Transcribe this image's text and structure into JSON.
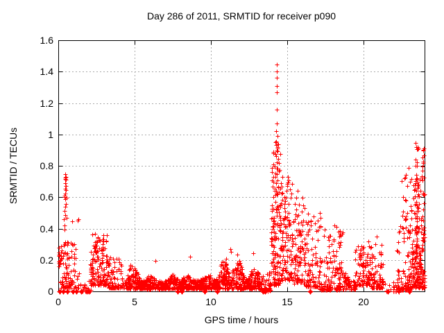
{
  "chart_data": {
    "type": "scatter",
    "title": "Day 286 of 2011, SRMTID for receiver p090",
    "xlabel": "GPS time / hours",
    "ylabel": "SRMTID / TECUs",
    "xlim": [
      0,
      24
    ],
    "ylim": [
      0,
      1.6
    ],
    "xticks": [
      {
        "v": 0,
        "label": "0"
      },
      {
        "v": 5,
        "label": "5"
      },
      {
        "v": 10,
        "label": "10"
      },
      {
        "v": 15,
        "label": "15"
      },
      {
        "v": 20,
        "label": "20"
      }
    ],
    "yticks": [
      {
        "v": 0,
        "label": "0"
      },
      {
        "v": 0.2,
        "label": "0.2"
      },
      {
        "v": 0.4,
        "label": "0.4"
      },
      {
        "v": 0.6,
        "label": "0.6"
      },
      {
        "v": 0.8,
        "label": "0.8"
      },
      {
        "v": 1,
        "label": "1"
      },
      {
        "v": 1.2,
        "label": "1.2"
      },
      {
        "v": 1.4,
        "label": "1.4"
      },
      {
        "v": 1.6,
        "label": "1.6"
      }
    ],
    "grid": true,
    "legend": null,
    "marker": {
      "shape": "plus",
      "color": "#ff0000",
      "size": 7
    },
    "grid_color": "#a8a8a8",
    "border_color": "#000000",
    "seed": 1234,
    "notable_points": [
      [
        14.32,
        1.445
      ],
      [
        14.31,
        1.4
      ],
      [
        14.33,
        1.362
      ],
      [
        14.3,
        1.31
      ],
      [
        14.33,
        1.268
      ],
      [
        14.31,
        1.158
      ],
      [
        14.34,
        1.07
      ],
      [
        14.29,
        1.02
      ],
      [
        14.36,
        0.99
      ],
      [
        0.45,
        0.487
      ],
      [
        0.44,
        0.745
      ],
      [
        0.46,
        0.715
      ],
      [
        0.45,
        0.688
      ],
      [
        0.44,
        0.655
      ],
      [
        0.46,
        0.625
      ],
      [
        0.45,
        0.59
      ],
      [
        17.15,
        0.5
      ],
      [
        17.2,
        0.47
      ],
      [
        20.85,
        0.35
      ],
      [
        11.27,
        0.27
      ],
      [
        11.3,
        0.25
      ],
      [
        8.62,
        0.22
      ],
      [
        12.75,
        0.245
      ],
      [
        6.35,
        0.195
      ],
      [
        0.05,
        0.235
      ],
      [
        0.05,
        0.225
      ],
      [
        0.1,
        0.23
      ],
      [
        23.4,
        0.945
      ],
      [
        23.45,
        0.92
      ],
      [
        23.5,
        0.905
      ],
      [
        23.9,
        0.9
      ],
      [
        23.95,
        0.865
      ]
    ],
    "zero_hours": [
      0.07,
      0.1,
      0.33,
      0.6,
      0.95,
      1.17,
      1.5,
      1.85,
      2.0,
      7.82,
      8.1,
      9.6,
      10.4,
      13.42,
      13.55,
      16.5,
      21.6,
      22.3,
      23.0
    ],
    "clusters": [
      {
        "t0": 0.02,
        "t1": 0.18,
        "n": 7,
        "y0": 0.17,
        "y1": 0.25,
        "shape": "uniform"
      },
      {
        "t0": 0.05,
        "t1": 0.9,
        "n": 80,
        "y0": 0.02,
        "y1": 0.32,
        "shape": "decay2"
      },
      {
        "t0": 0.38,
        "t1": 0.55,
        "n": 16,
        "y0": 0.28,
        "y1": 0.76,
        "shape": "uniform"
      },
      {
        "t0": 0.9,
        "t1": 1.35,
        "n": 28,
        "y0": 0.02,
        "y1": 0.46,
        "shape": "decay"
      },
      {
        "t0": 1.4,
        "t1": 2.15,
        "n": 22,
        "y0": 0.0,
        "y1": 0.09,
        "shape": "decay"
      },
      {
        "t0": 2.1,
        "t1": 3.3,
        "n": 140,
        "y0": 0.04,
        "y1": 0.37,
        "shape": "decay2"
      },
      {
        "t0": 2.4,
        "t1": 2.62,
        "n": 14,
        "y0": 0.24,
        "y1": 0.35,
        "shape": "uniform"
      },
      {
        "t0": 3.3,
        "t1": 4.35,
        "n": 85,
        "y0": 0.02,
        "y1": 0.22,
        "shape": "decay"
      },
      {
        "t0": 4.35,
        "t1": 8.3,
        "n": 430,
        "y0": 0.015,
        "y1": 0.19,
        "shape": "band"
      },
      {
        "t0": 8.3,
        "t1": 11.2,
        "n": 330,
        "y0": 0.015,
        "y1": 0.21,
        "shape": "band"
      },
      {
        "t0": 10.7,
        "t1": 11.1,
        "n": 22,
        "y0": 0.05,
        "y1": 0.27,
        "shape": "decay"
      },
      {
        "t0": 11.2,
        "t1": 13.35,
        "n": 250,
        "y0": 0.015,
        "y1": 0.24,
        "shape": "band"
      },
      {
        "t0": 13.35,
        "t1": 13.95,
        "n": 45,
        "y0": 0.0,
        "y1": 0.14,
        "shape": "decay"
      },
      {
        "t0": 13.95,
        "t1": 14.55,
        "n": 150,
        "y0": 0.04,
        "y1": 0.9,
        "shape": "decay2"
      },
      {
        "t0": 14.2,
        "t1": 14.42,
        "n": 12,
        "y0": 0.78,
        "y1": 0.96,
        "shape": "uniform"
      },
      {
        "t0": 14.55,
        "t1": 15.35,
        "n": 115,
        "y0": 0.07,
        "y1": 0.73,
        "shape": "decay2"
      },
      {
        "t0": 15.35,
        "t1": 16.2,
        "n": 100,
        "y0": 0.05,
        "y1": 0.65,
        "shape": "decay2"
      },
      {
        "t0": 16.2,
        "t1": 17.05,
        "n": 85,
        "y0": 0.03,
        "y1": 0.5,
        "shape": "decay"
      },
      {
        "t0": 17.05,
        "t1": 18.3,
        "n": 115,
        "y0": 0.01,
        "y1": 0.42,
        "shape": "decay"
      },
      {
        "t0": 18.38,
        "t1": 18.62,
        "n": 12,
        "y0": 0.28,
        "y1": 0.39,
        "shape": "uniform"
      },
      {
        "t0": 18.3,
        "t1": 19.45,
        "n": 90,
        "y0": 0.01,
        "y1": 0.2,
        "shape": "band"
      },
      {
        "t0": 19.45,
        "t1": 20.45,
        "n": 95,
        "y0": 0.04,
        "y1": 0.32,
        "shape": "decay2"
      },
      {
        "t0": 20.45,
        "t1": 21.3,
        "n": 80,
        "y0": 0.02,
        "y1": 0.3,
        "shape": "decay"
      },
      {
        "t0": 21.3,
        "t1": 22.15,
        "n": 13,
        "y0": 0.0,
        "y1": 0.07,
        "shape": "decay"
      },
      {
        "t0": 22.15,
        "t1": 23.1,
        "n": 95,
        "y0": 0.01,
        "y1": 0.44,
        "shape": "decay"
      },
      {
        "t0": 22.5,
        "t1": 23.3,
        "n": 30,
        "y0": 0.35,
        "y1": 0.8,
        "shape": "uniform"
      },
      {
        "t0": 23.35,
        "t1": 23.6,
        "n": 16,
        "y0": 0.6,
        "y1": 0.95,
        "shape": "uniform"
      },
      {
        "t0": 23.15,
        "t1": 24.0,
        "n": 140,
        "y0": 0.02,
        "y1": 0.38,
        "shape": "band"
      },
      {
        "t0": 23.3,
        "t1": 24.0,
        "n": 80,
        "y0": 0.2,
        "y1": 0.72,
        "shape": "uniform"
      },
      {
        "t0": 23.8,
        "t1": 23.98,
        "n": 10,
        "y0": 0.72,
        "y1": 0.92,
        "shape": "uniform"
      }
    ]
  }
}
